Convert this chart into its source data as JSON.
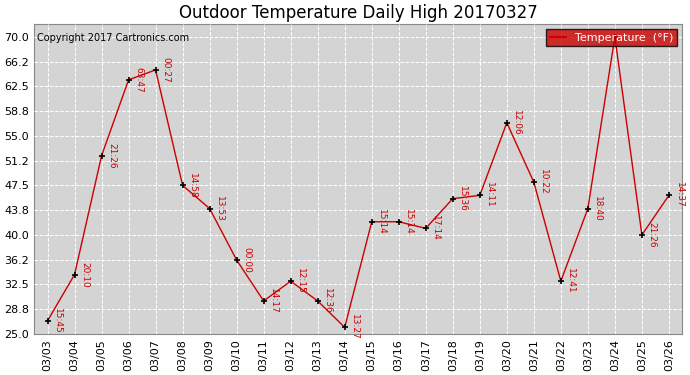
{
  "title": "Outdoor Temperature Daily High 20170327",
  "copyright": "Copyright 2017 Cartronics.com",
  "legend_label": "Temperature  (°F)",
  "dates": [
    "03/03",
    "03/04",
    "03/05",
    "03/06",
    "03/07",
    "03/08",
    "03/09",
    "03/10",
    "03/11",
    "03/12",
    "03/13",
    "03/14",
    "03/15",
    "03/16",
    "03/17",
    "03/18",
    "03/19",
    "03/20",
    "03/21",
    "03/22",
    "03/23",
    "03/24",
    "03/25",
    "03/26"
  ],
  "values": [
    27.0,
    34.0,
    52.0,
    63.5,
    65.0,
    47.5,
    44.0,
    36.2,
    30.0,
    33.0,
    30.0,
    26.0,
    42.0,
    42.0,
    41.0,
    45.5,
    46.0,
    57.0,
    48.0,
    33.0,
    44.0,
    70.0,
    40.0,
    46.0
  ],
  "annotations": [
    "15:45",
    "20:10",
    "21:26",
    "63:47",
    "00:27",
    "14:58",
    "13:53",
    "00:00",
    "14:17",
    "12:15",
    "12:36",
    "13:27",
    "15:14",
    "15:14",
    "17:14",
    "15:36",
    "14:11",
    "12:06",
    "10:22",
    "12:41",
    "18:40",
    "",
    "21:26",
    "14:37"
  ],
  "line_color": "#cc0000",
  "marker_color": "#000000",
  "bg_color": "#ffffff",
  "plot_bg_color": "#d4d4d4",
  "grid_color": "#ffffff",
  "ylim_min": 25.0,
  "ylim_max": 72.0,
  "yticks": [
    25.0,
    28.8,
    32.5,
    36.2,
    40.0,
    43.8,
    47.5,
    51.2,
    55.0,
    58.8,
    62.5,
    66.2,
    70.0
  ],
  "legend_bg": "#cc0000",
  "legend_text_color": "#ffffff",
  "title_fontsize": 12,
  "annotation_fontsize": 6.5,
  "tick_fontsize": 8,
  "copyright_fontsize": 7
}
